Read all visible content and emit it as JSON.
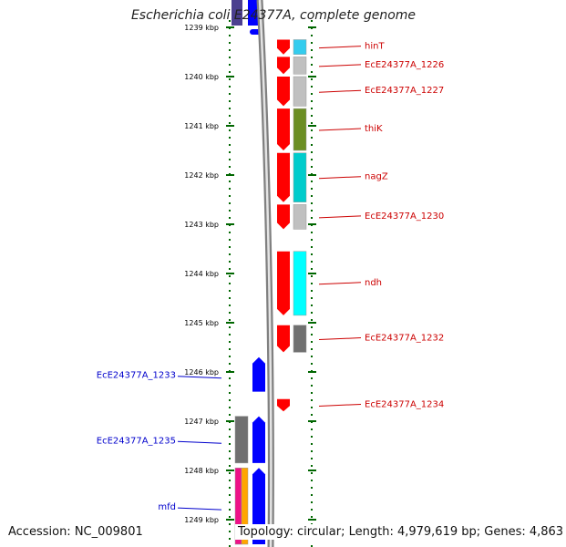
{
  "title": "Escherichia coli E24377A, complete genome",
  "footer": {
    "accession": "Accession: NC_009801",
    "topology": "Topology: circular; Length: 4,979,619 bp; Genes: 4,863"
  },
  "axis": {
    "unit": "kbp",
    "ticks": [
      {
        "kbp": 1239,
        "label": "1239 kbp"
      },
      {
        "kbp": 1240,
        "label": "1240 kbp"
      },
      {
        "kbp": 1241,
        "label": "1241 kbp"
      },
      {
        "kbp": 1242,
        "label": "1242 kbp"
      },
      {
        "kbp": 1243,
        "label": "1243 kbp"
      },
      {
        "kbp": 1244,
        "label": "1244 kbp"
      },
      {
        "kbp": 1245,
        "label": "1245 kbp"
      },
      {
        "kbp": 1246,
        "label": "1246 kbp"
      },
      {
        "kbp": 1247,
        "label": "1247 kbp"
      },
      {
        "kbp": 1248,
        "label": "1248 kbp"
      },
      {
        "kbp": 1249,
        "label": "1249 kbp"
      }
    ]
  },
  "colors": {
    "forward_strand": "#ff0000",
    "reverse_strand": "#0000ff",
    "backbone": "#808080",
    "forward_label": "#cc0000",
    "reverse_label": "#0000cc",
    "tick": "#006600"
  },
  "forward_genes": [
    {
      "label": "hinT",
      "start": 1239.25,
      "end": 1239.55,
      "cog_color": "#33ccee"
    },
    {
      "label": "EcE24377A_1226",
      "start": 1239.6,
      "end": 1239.95,
      "cog_color": "#c0c0c0"
    },
    {
      "label": "EcE24377A_1227",
      "start": 1240.0,
      "end": 1240.6,
      "cog_color": "#c0c0c0"
    },
    {
      "label": "thiK",
      "start": 1240.65,
      "end": 1241.5,
      "cog_color": "#6b8e23"
    },
    {
      "label": "nagZ",
      "start": 1241.55,
      "end": 1242.55,
      "cog_color": "#00cccc"
    },
    {
      "label": "EcE24377A_1230",
      "start": 1242.6,
      "end": 1243.1,
      "cog_color": "#c0c0c0"
    },
    {
      "label": "ndh",
      "start": 1243.55,
      "end": 1244.85,
      "cog_color": "#00ffff"
    },
    {
      "label": "EcE24377A_1232",
      "start": 1245.05,
      "end": 1245.6,
      "cog_color": "#707070"
    },
    {
      "label": "EcE24377A_1234",
      "start": 1246.55,
      "end": 1246.8,
      "cog_color": ""
    }
  ],
  "reverse_genes": [
    {
      "label": "EcE24377A_1233",
      "start": 1245.7,
      "end": 1246.4,
      "cog_color": ""
    },
    {
      "label": "EcE24377A_1235",
      "start": 1246.9,
      "end": 1247.85,
      "cog_color": "#707070"
    },
    {
      "label": "mfd",
      "start": 1247.95,
      "end": 1249.5,
      "cog_color": "#ee1188",
      "cog_color_2": "#ffa500"
    }
  ]
}
